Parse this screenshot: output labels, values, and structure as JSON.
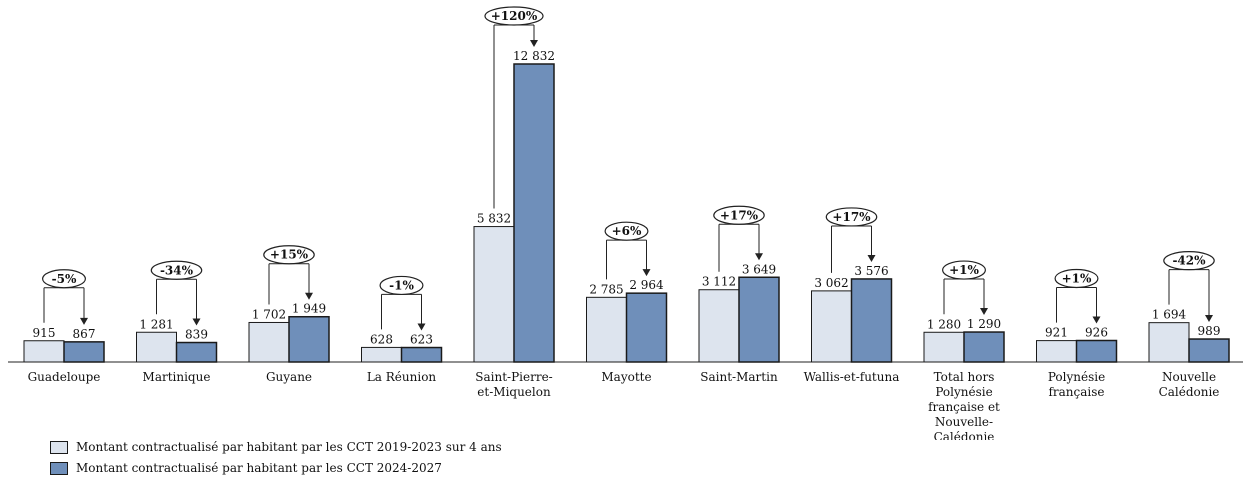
{
  "chart_data": {
    "type": "bar",
    "categories": [
      "Guadeloupe",
      "Martinique",
      "Guyane",
      "La Réunion",
      "Saint-Pierre-et-Miquelon",
      "Mayotte",
      "Saint-Martin",
      "Wallis-et-futuna",
      "Total hors Polynésie française et Nouvelle-Calédonie",
      "Polynésie française",
      "Nouvelle Calédonie"
    ],
    "category_lines": [
      [
        "Guadeloupe"
      ],
      [
        "Martinique"
      ],
      [
        "Guyane"
      ],
      [
        "La Réunion"
      ],
      [
        "Saint-Pierre-",
        "et-Miquelon"
      ],
      [
        "Mayotte"
      ],
      [
        "Saint-Martin"
      ],
      [
        "Wallis-et-futuna"
      ],
      [
        "Total hors",
        "Polynésie",
        "française et",
        "Nouvelle-",
        "Calédonie"
      ],
      [
        "Polynésie",
        "française"
      ],
      [
        "Nouvelle",
        "Calédonie"
      ]
    ],
    "series": [
      {
        "name": "Montant contractualisé par habitant par les CCT 2019-2023 sur 4 ans",
        "values": [
          915,
          1281,
          1702,
          628,
          5832,
          2785,
          3112,
          3062,
          1280,
          921,
          1694
        ],
        "labels": [
          "915",
          "1 281",
          "1 702",
          "628",
          "5 832",
          "2 785",
          "3 112",
          "3 062",
          "1 280",
          "921",
          "1 694"
        ],
        "color": "#dde4ee"
      },
      {
        "name": "Montant contractualisé par habitant par les CCT 2024-2027",
        "values": [
          867,
          839,
          1949,
          623,
          12832,
          2964,
          3649,
          3576,
          1290,
          926,
          989
        ],
        "labels": [
          "867",
          "839",
          "1 949",
          "623",
          "12 832",
          "2 964",
          "3 649",
          "3 576",
          "1 290",
          "926",
          "989"
        ],
        "color": "#6f8fba"
      }
    ],
    "variations": [
      "-5%",
      "-34%",
      "+15%",
      "-1%",
      "+120%",
      "+6%",
      "+17%",
      "+17%",
      "+1%",
      "+1%",
      "-42%"
    ],
    "ylim": [
      0,
      12832
    ],
    "grid": false,
    "legend_position": "bottom-left",
    "title": "",
    "xlabel": "",
    "ylabel": ""
  }
}
